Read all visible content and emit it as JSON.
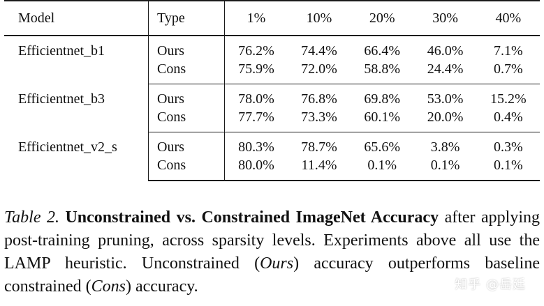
{
  "table": {
    "headers": [
      "Model",
      "Type",
      "1%",
      "10%",
      "20%",
      "30%",
      "40%"
    ],
    "groups": [
      {
        "model": "Efficientnet_b1",
        "rows": [
          {
            "type": "Ours",
            "values": [
              "76.2%",
              "74.4%",
              "66.4%",
              "46.0%",
              "7.1%"
            ]
          },
          {
            "type": "Cons",
            "values": [
              "75.9%",
              "72.0%",
              "58.8%",
              "24.4%",
              "0.7%"
            ]
          }
        ]
      },
      {
        "model": "Efficientnet_b3",
        "rows": [
          {
            "type": "Ours",
            "values": [
              "78.0%",
              "76.8%",
              "69.8%",
              "53.0%",
              "15.2%"
            ]
          },
          {
            "type": "Cons",
            "values": [
              "77.7%",
              "73.3%",
              "60.1%",
              "20.0%",
              "0.4%"
            ]
          }
        ]
      },
      {
        "model": "Efficientnet_v2_s",
        "rows": [
          {
            "type": "Ours",
            "values": [
              "80.3%",
              "78.7%",
              "65.6%",
              "3.8%",
              "0.3%"
            ]
          },
          {
            "type": "Cons",
            "values": [
              "80.0%",
              "11.4%",
              "0.1%",
              "0.1%",
              "0.1%"
            ]
          }
        ]
      }
    ]
  },
  "caption": {
    "label": "Table 2.",
    "bold": "Unconstrained vs. Constrained ImageNet Accuracy",
    "text1": "after applying post-training pruning, across sparsity levels. Experiments above all use the LAMP heuristic. Unconstrained (",
    "ours": "Ours",
    "text2": ") accuracy outperforms baseline constrained (",
    "cons": "Cons",
    "text3": ") accuracy."
  },
  "watermark": "知乎 @岳廷"
}
